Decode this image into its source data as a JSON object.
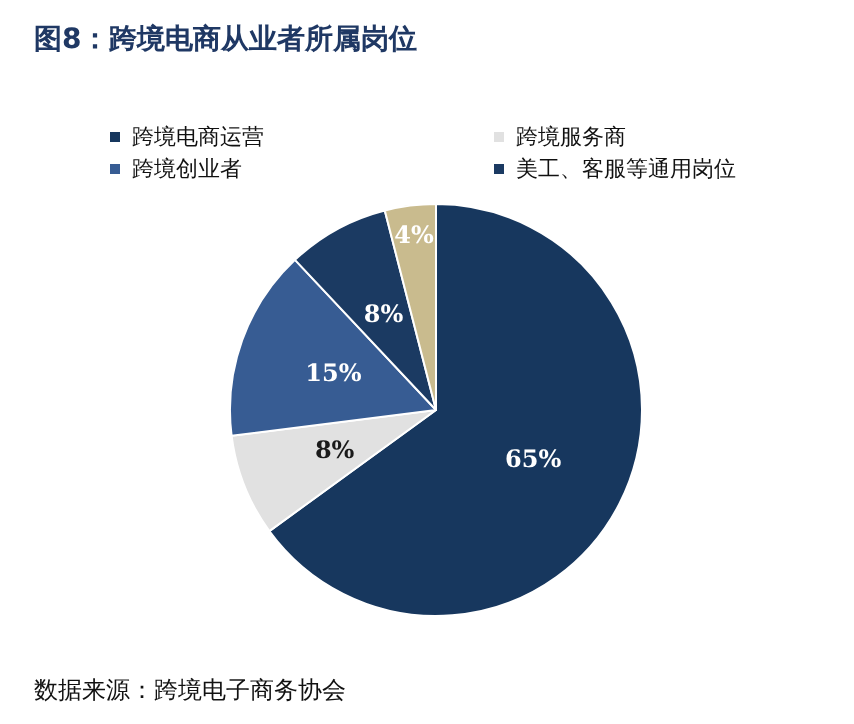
{
  "chart_data": {
    "type": "pie",
    "title": "图8：跨境电商从业者所属岗位",
    "categories": [
      "跨境电商运营",
      "跨境服务商",
      "跨境创业者",
      "美工、客服等通用岗位",
      null
    ],
    "values": [
      65,
      8,
      15,
      8,
      4
    ],
    "colors": [
      "#17375e",
      "#e1e1e1",
      "#375c93",
      "#1b3a62",
      "#c9bb8e"
    ],
    "value_labels": [
      "65%",
      "8%",
      "15%",
      "8%",
      "4%"
    ],
    "legend": "top",
    "annotations": [
      "数据来源：跨境电子商务协会"
    ]
  }
}
